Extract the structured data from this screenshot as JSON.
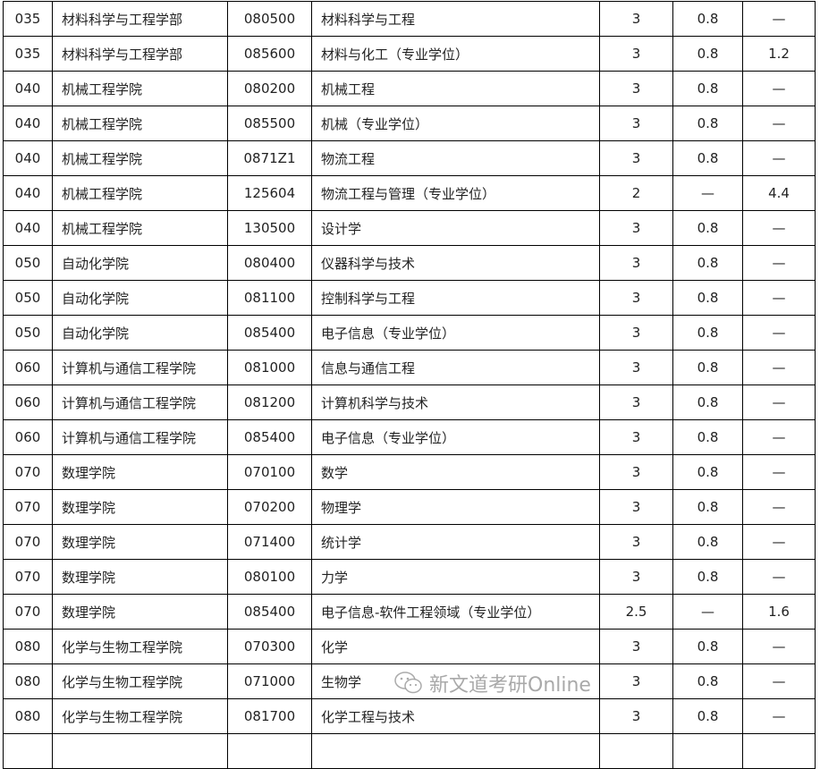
{
  "rows": [
    [
      "035",
      "材料科学与工程学部",
      "080500",
      "材料科学与工程",
      "3",
      "0.8",
      "—"
    ],
    [
      "035",
      "材料科学与工程学部",
      "085600",
      "材料与化工（专业学位）",
      "3",
      "0.8",
      "1.2"
    ],
    [
      "040",
      "机械工程学院",
      "080200",
      "机械工程",
      "3",
      "0.8",
      "—"
    ],
    [
      "040",
      "机械工程学院",
      "085500",
      "机械（专业学位）",
      "3",
      "0.8",
      "—"
    ],
    [
      "040",
      "机械工程学院",
      "0871Z1",
      "物流工程",
      "3",
      "0.8",
      "—"
    ],
    [
      "040",
      "机械工程学院",
      "125604",
      "物流工程与管理（专业学位）",
      "2",
      "—",
      "4.4"
    ],
    [
      "040",
      "机械工程学院",
      "130500",
      "设计学",
      "3",
      "0.8",
      "—"
    ],
    [
      "050",
      "自动化学院",
      "080400",
      "仪器科学与技术",
      "3",
      "0.8",
      "—"
    ],
    [
      "050",
      "自动化学院",
      "081100",
      "控制科学与工程",
      "3",
      "0.8",
      "—"
    ],
    [
      "050",
      "自动化学院",
      "085400",
      "电子信息（专业学位）",
      "3",
      "0.8",
      "—"
    ],
    [
      "060",
      "计算机与通信工程学院",
      "081000",
      "信息与通信工程",
      "3",
      "0.8",
      "—"
    ],
    [
      "060",
      "计算机与通信工程学院",
      "081200",
      "计算机科学与技术",
      "3",
      "0.8",
      "—"
    ],
    [
      "060",
      "计算机与通信工程学院",
      "085400",
      "电子信息（专业学位）",
      "3",
      "0.8",
      "—"
    ],
    [
      "070",
      "数理学院",
      "070100",
      "数学",
      "3",
      "0.8",
      "—"
    ],
    [
      "070",
      "数理学院",
      "070200",
      "物理学",
      "3",
      "0.8",
      "—"
    ],
    [
      "070",
      "数理学院",
      "071400",
      "统计学",
      "3",
      "0.8",
      "—"
    ],
    [
      "070",
      "数理学院",
      "080100",
      "力学",
      "3",
      "0.8",
      "—"
    ],
    [
      "070",
      "数理学院",
      "085400",
      "电子信息-软件工程领域（专业学位）",
      "2.5",
      "—",
      "1.6"
    ],
    [
      "080",
      "化学与生物工程学院",
      "070300",
      "化学",
      "3",
      "0.8",
      "—"
    ],
    [
      "080",
      "化学与生物工程学院",
      "071000",
      "生物学",
      "3",
      "0.8",
      "—"
    ],
    [
      "080",
      "化学与生物工程学院",
      "081700",
      "化学工程与技术",
      "3",
      "0.8",
      "—"
    ]
  ],
  "watermark": "新文道考研Online",
  "watermark_icon": "wechat-icon"
}
